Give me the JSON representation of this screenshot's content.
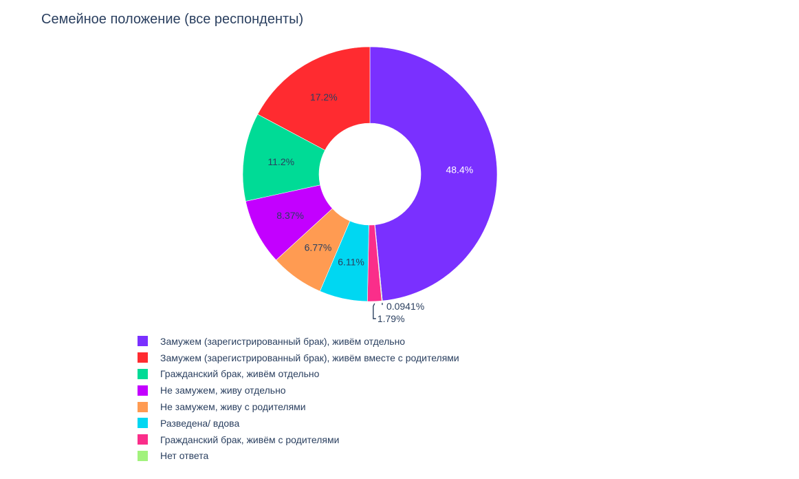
{
  "chart_data": {
    "type": "pie",
    "hole": true,
    "title": "Семейное положение (все респонденты)",
    "legend_position": "bottom-left",
    "slices": [
      {
        "label": "Замужем (зарегистрированный брак), живём отдельно",
        "value": 48.4,
        "text": "48.4%",
        "color": "#7a30ff",
        "text_color": "#ffffff"
      },
      {
        "label": "Нет ответа",
        "value": 0.0941,
        "text": "0.0941%",
        "color": "#a2f27d",
        "text_color": "#2a3f5f"
      },
      {
        "label": "Гражданский брак, живём с родителями",
        "value": 1.79,
        "text": "1.79%",
        "color": "#fa2e8a",
        "text_color": "#2a3f5f"
      },
      {
        "label": "Разведена/ вдова",
        "value": 6.11,
        "text": "6.11%",
        "color": "#00d7f2",
        "text_color": "#2a3f5f"
      },
      {
        "label": "Не замужем, живу с родителями",
        "value": 6.77,
        "text": "6.77%",
        "color": "#ff9b52",
        "text_color": "#2a3f5f"
      },
      {
        "label": "Не замужем, живу отдельно",
        "value": 8.37,
        "text": "8.37%",
        "color": "#c300ff",
        "text_color": "#2a3f5f"
      },
      {
        "label": "Гражданский брак, живём отдельно",
        "value": 11.2,
        "text": "11.2%",
        "color": "#00db96",
        "text_color": "#2a3f5f"
      },
      {
        "label": "Замужем (зарегистрированный брак), живём вместе с родителями",
        "value": 17.2,
        "text": "17.2%",
        "color": "#ff2b30",
        "text_color": "#2a3f5f"
      }
    ],
    "legend": [
      {
        "label": "Замужем (зарегистрированный брак), живём отдельно",
        "color": "#7a30ff"
      },
      {
        "label": "Замужем (зарегистрированный брак), живём вместе с родителями",
        "color": "#ff2b30"
      },
      {
        "label": "Гражданский брак, живём отдельно",
        "color": "#00db96"
      },
      {
        "label": "Не замужем, живу отдельно",
        "color": "#c300ff"
      },
      {
        "label": "Не замужем, живу с родителями",
        "color": "#ff9b52"
      },
      {
        "label": "Разведена/ вдова",
        "color": "#00d7f2"
      },
      {
        "label": "Гражданский брак, живём с родителями",
        "color": "#fa2e8a"
      },
      {
        "label": "Нет ответа",
        "color": "#a2f27d"
      }
    ]
  }
}
